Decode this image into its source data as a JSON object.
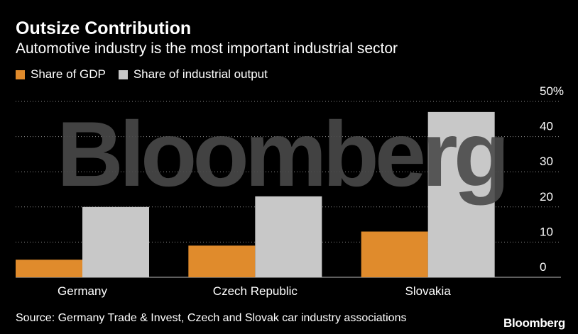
{
  "header": {
    "title": "Outsize Contribution",
    "subtitle": "Automotive industry is the most important industrial sector"
  },
  "footer": {
    "source": "Source: Germany Trade & Invest, Czech and Slovak car industry associations",
    "brand": "Bloomberg"
  },
  "watermark": "Bloomberg",
  "colors": {
    "gdp": "#e08b2c",
    "industrial": "#c8c8c8"
  },
  "chart_data": {
    "type": "bar",
    "categories": [
      "Germany",
      "Czech Republic",
      "Slovakia"
    ],
    "series": [
      {
        "name": "Share of GDP",
        "values": [
          5,
          9,
          13
        ]
      },
      {
        "name": "Share of industrial output",
        "values": [
          20,
          23,
          47
        ]
      }
    ],
    "title": "Outsize Contribution",
    "subtitle": "Automotive industry is the most important industrial sector",
    "ylim": [
      0,
      50
    ],
    "yticks": [
      0,
      10,
      20,
      30,
      40,
      50
    ],
    "ytick_labels": [
      "0",
      "10",
      "20",
      "30",
      "40",
      "50%"
    ],
    "grid": true,
    "legend": "top-left"
  }
}
